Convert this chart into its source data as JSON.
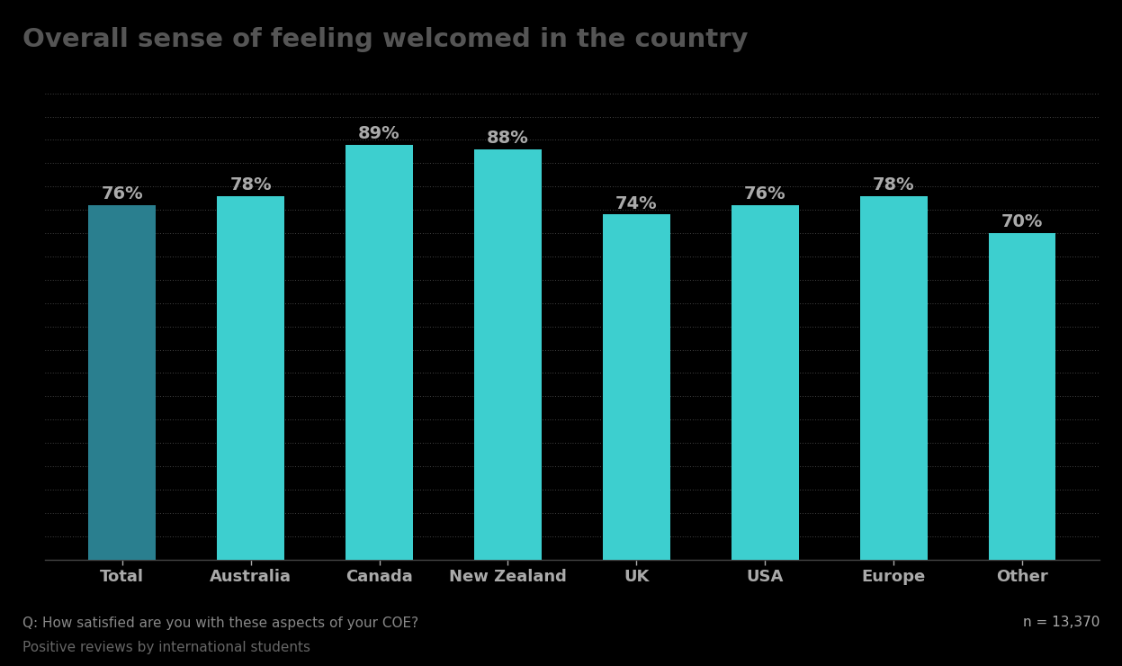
{
  "title": "Overall sense of feeling welcomed in the country",
  "categories": [
    "Total",
    "Australia",
    "Canada",
    "New Zealand",
    "UK",
    "USA",
    "Europe",
    "Other"
  ],
  "values": [
    76,
    78,
    89,
    88,
    74,
    76,
    78,
    70
  ],
  "bar_colors": [
    "#2a7f8f",
    "#3dcfcf",
    "#3dcfcf",
    "#3dcfcf",
    "#3dcfcf",
    "#3dcfcf",
    "#3dcfcf",
    "#3dcfcf"
  ],
  "background_color": "#000000",
  "label_color": "#aaaaaa",
  "title_color": "#555555",
  "axis_label_color": "#aaaaaa",
  "footnote_q_color": "#888888",
  "footnote_reviews_color": "#666666",
  "footnote_n_color": "#aaaaaa",
  "footnote_q": "Q: How satisfied are you with these aspects of your COE?",
  "footnote_reviews": "Positive reviews by international students",
  "footnote_n": "n = 13,370",
  "ylim": [
    0,
    100
  ],
  "grid_color": "#ffffff",
  "grid_alpha": 0.5,
  "title_fontsize": 21,
  "value_fontsize": 14,
  "tick_fontsize": 13,
  "footnote_fontsize": 11
}
